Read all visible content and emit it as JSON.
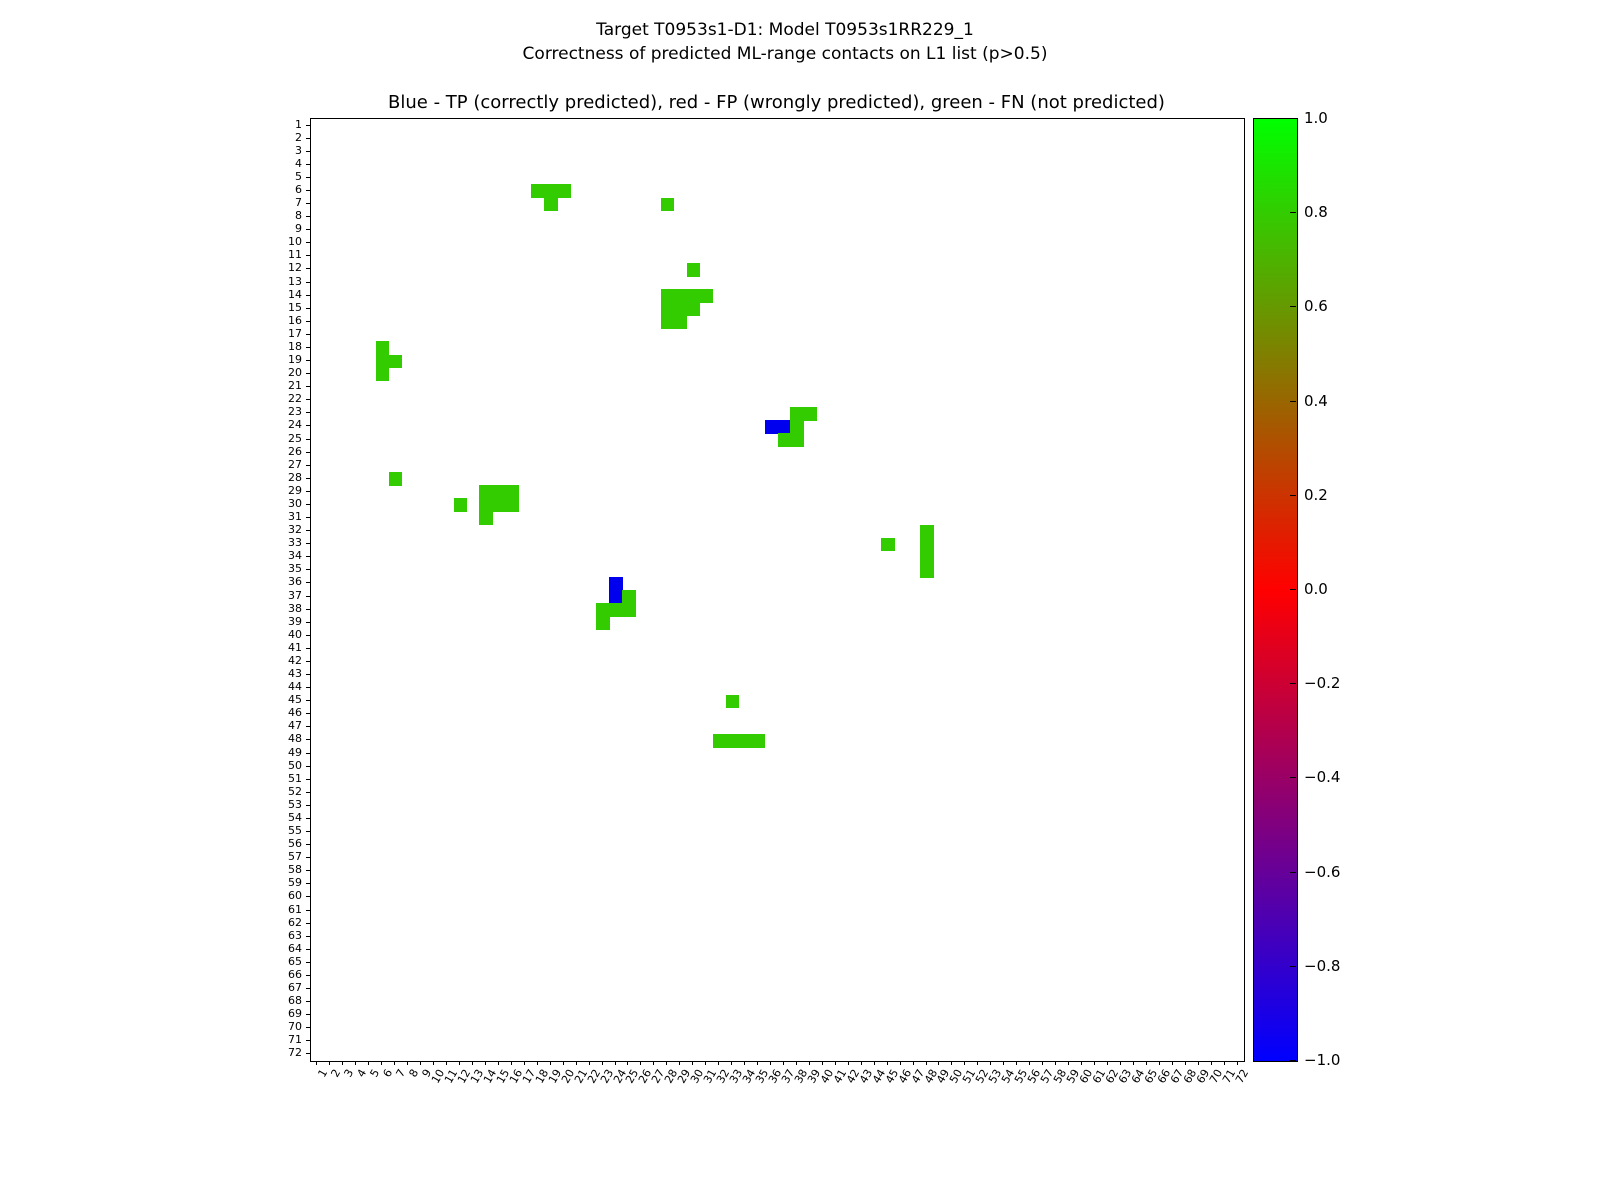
{
  "titles": {
    "suptitle_line1": "Target T0953s1-D1: Model T0953s1RR229_1",
    "suptitle_line2": "Correctness of predicted ML-range contacts on L1 list (p>0.5)",
    "axes_title": "Blue - TP (correctly predicted), red - FP (wrongly predicted), green - FN (not predicted)"
  },
  "chart_data": {
    "type": "heatmap",
    "description": "Contact map correctness matrix, residue vs residue, upper triangle cells only",
    "x_axis": {
      "range": [
        1,
        72
      ],
      "tick_labels": [
        "1",
        "2",
        "3",
        "4",
        "5",
        "6",
        "7",
        "8",
        "9",
        "10",
        "11",
        "12",
        "13",
        "14",
        "15",
        "16",
        "17",
        "18",
        "19",
        "20",
        "21",
        "22",
        "23",
        "24",
        "25",
        "26",
        "27",
        "28",
        "29",
        "30",
        "31",
        "32",
        "33",
        "34",
        "35",
        "36",
        "37",
        "38",
        "39",
        "40",
        "41",
        "42",
        "43",
        "44",
        "45",
        "46",
        "47",
        "48",
        "49",
        "50",
        "51",
        "52",
        "53",
        "54",
        "55",
        "56",
        "57",
        "58",
        "59",
        "60",
        "61",
        "62",
        "63",
        "64",
        "65",
        "66",
        "67",
        "68",
        "69",
        "70",
        "71",
        "72"
      ]
    },
    "y_axis": {
      "range": [
        1,
        72
      ],
      "tick_labels": [
        "1",
        "2",
        "3",
        "4",
        "5",
        "6",
        "7",
        "8",
        "9",
        "10",
        "11",
        "12",
        "13",
        "14",
        "15",
        "16",
        "17",
        "18",
        "19",
        "20",
        "21",
        "22",
        "23",
        "24",
        "25",
        "26",
        "27",
        "28",
        "29",
        "30",
        "31",
        "32",
        "33",
        "34",
        "35",
        "36",
        "37",
        "38",
        "39",
        "40",
        "41",
        "42",
        "43",
        "44",
        "45",
        "46",
        "47",
        "48",
        "49",
        "50",
        "51",
        "52",
        "53",
        "54",
        "55",
        "56",
        "57",
        "58",
        "59",
        "60",
        "61",
        "62",
        "63",
        "64",
        "65",
        "66",
        "67",
        "68",
        "69",
        "70",
        "71",
        "72"
      ]
    },
    "colorbar": {
      "min": -1.0,
      "max": 1.0,
      "tick_labels": [
        "1.0",
        "0.8",
        "0.6",
        "0.4",
        "0.2",
        "0.0",
        "−0.2",
        "−0.4",
        "−0.6",
        "−0.8",
        "−1.0"
      ],
      "gradient_top_to_bottom": [
        "#00ff00",
        "#ff0000",
        "#0000ff"
      ]
    },
    "legend": [
      {
        "code": "TP",
        "meaning": "correctly predicted",
        "color_name": "blue"
      },
      {
        "code": "FP",
        "meaning": "wrongly predicted",
        "color_name": "red"
      },
      {
        "code": "FN",
        "meaning": "not predicted",
        "color_name": "green"
      }
    ],
    "colors": {
      "TP": "#0000ee",
      "FP": "#ff0000",
      "FN": "#33cc00"
    },
    "cells": [
      [
        6,
        18,
        "FN"
      ],
      [
        6,
        19,
        "FN"
      ],
      [
        6,
        20,
        "FN"
      ],
      [
        7,
        19,
        "FN"
      ],
      [
        7,
        28,
        "FN"
      ],
      [
        12,
        30,
        "FN"
      ],
      [
        14,
        28,
        "FN"
      ],
      [
        14,
        29,
        "FN"
      ],
      [
        14,
        30,
        "FN"
      ],
      [
        14,
        31,
        "FN"
      ],
      [
        15,
        28,
        "FN"
      ],
      [
        15,
        29,
        "FN"
      ],
      [
        15,
        30,
        "FN"
      ],
      [
        16,
        28,
        "FN"
      ],
      [
        16,
        29,
        "FN"
      ],
      [
        18,
        6,
        "FN"
      ],
      [
        19,
        6,
        "FN"
      ],
      [
        19,
        7,
        "FN"
      ],
      [
        20,
        6,
        "FN"
      ],
      [
        23,
        38,
        "FN"
      ],
      [
        23,
        39,
        "FN"
      ],
      [
        24,
        36,
        "TP"
      ],
      [
        24,
        37,
        "TP"
      ],
      [
        24,
        38,
        "FN"
      ],
      [
        25,
        37,
        "FN"
      ],
      [
        25,
        38,
        "FN"
      ],
      [
        28,
        7,
        "FN"
      ],
      [
        29,
        14,
        "FN"
      ],
      [
        29,
        15,
        "FN"
      ],
      [
        29,
        16,
        "FN"
      ],
      [
        30,
        12,
        "FN"
      ],
      [
        30,
        14,
        "FN"
      ],
      [
        30,
        15,
        "FN"
      ],
      [
        30,
        16,
        "FN"
      ],
      [
        31,
        14,
        "FN"
      ],
      [
        32,
        48,
        "FN"
      ],
      [
        33,
        45,
        "FN"
      ],
      [
        33,
        48,
        "FN"
      ],
      [
        34,
        48,
        "FN"
      ],
      [
        35,
        48,
        "FN"
      ],
      [
        36,
        24,
        "TP"
      ],
      [
        37,
        24,
        "TP"
      ],
      [
        37,
        25,
        "FN"
      ],
      [
        38,
        23,
        "FN"
      ],
      [
        38,
        24,
        "FN"
      ],
      [
        38,
        25,
        "FN"
      ],
      [
        39,
        23,
        "FN"
      ],
      [
        45,
        33,
        "FN"
      ],
      [
        48,
        32,
        "FN"
      ],
      [
        48,
        33,
        "FN"
      ],
      [
        48,
        34,
        "FN"
      ],
      [
        48,
        35,
        "FN"
      ]
    ]
  }
}
